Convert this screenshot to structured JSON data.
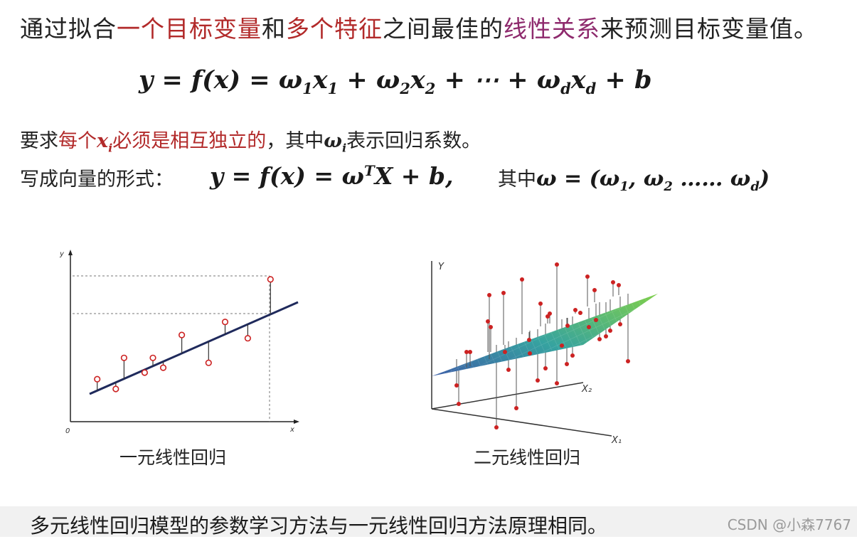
{
  "line1": {
    "p1": "通过拟合",
    "p2": "一个目标变量",
    "p3": "和",
    "p4": "多个特征",
    "p5": "之间最佳的",
    "p6": "线性关系",
    "p7": "来预测目标变量值。"
  },
  "eq1": "y = f(x) = ω₁x₁ + ω₂x₂ + ⋯ + ω_d x_d + b",
  "requirement": {
    "p1": "要求",
    "p2": "每个",
    "p3": "必须是相互独立的",
    "p4": "，其中",
    "p5": "表示回归系数。"
  },
  "vector": {
    "label": "写成向量的形式：",
    "where": "其中"
  },
  "plots": {
    "left": {
      "caption": "一元线性回归",
      "axis_y": "y",
      "axis_x": "x",
      "origin": "0",
      "points": [
        [
          1.3,
          2.6
        ],
        [
          2.2,
          2.0
        ],
        [
          2.6,
          3.9
        ],
        [
          3.6,
          3.0
        ],
        [
          4.0,
          3.9
        ],
        [
          4.5,
          3.3
        ],
        [
          5.4,
          5.3
        ],
        [
          6.7,
          3.6
        ],
        [
          7.5,
          6.1
        ],
        [
          8.6,
          5.1
        ],
        [
          9.7,
          8.7
        ]
      ]
    },
    "right": {
      "caption": "二元线性回归",
      "axis_y": "Y",
      "axis_x1": "X₁",
      "axis_x2": "X₂"
    }
  },
  "bottom": {
    "text": "多元线性回归模型的参数学习方法与一元线性回归方法原理相同。",
    "watermark": "CSDN @小森7767"
  },
  "colors": {
    "red": "#b22a2a",
    "purple": "#8e2a6d",
    "line": "#1f2a5c",
    "point": "#cc2222"
  }
}
